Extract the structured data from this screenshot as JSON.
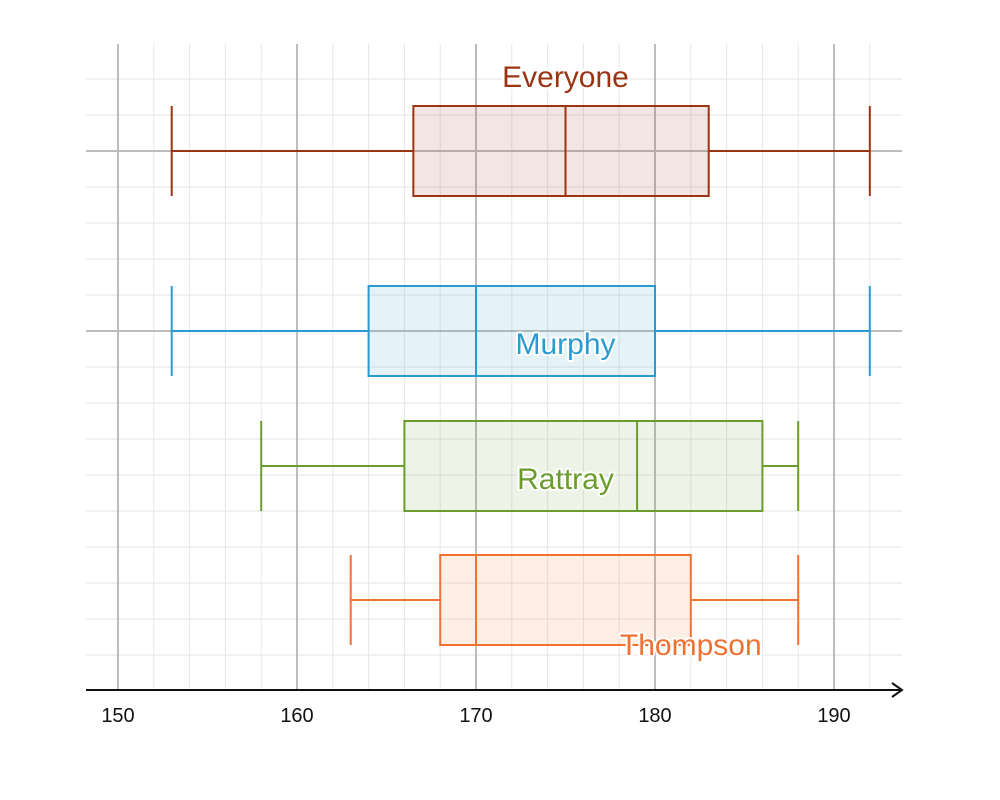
{
  "chart_data": {
    "type": "boxplot",
    "orientation": "horizontal",
    "xlim": [
      148,
      195
    ],
    "x_ticks": [
      150,
      160,
      170,
      180,
      190
    ],
    "minor_tick_step": 2,
    "grid": true,
    "series": [
      {
        "name": "Everyone",
        "color": "#9a3412",
        "min": 153,
        "q1": 166.5,
        "median": 175,
        "q3": 183,
        "max": 192
      },
      {
        "name": "Murphy",
        "color": "#2a9bd1",
        "min": 153,
        "q1": 164,
        "median": 170,
        "q3": 180,
        "max": 192
      },
      {
        "name": "Rattray",
        "color": "#6b9c2e",
        "min": 158,
        "q1": 166,
        "median": 179,
        "q3": 186,
        "max": 188
      },
      {
        "name": "Thompson",
        "color": "#f07233",
        "min": 163,
        "q1": 168,
        "median": 170,
        "q3": 182,
        "max": 188
      }
    ]
  }
}
